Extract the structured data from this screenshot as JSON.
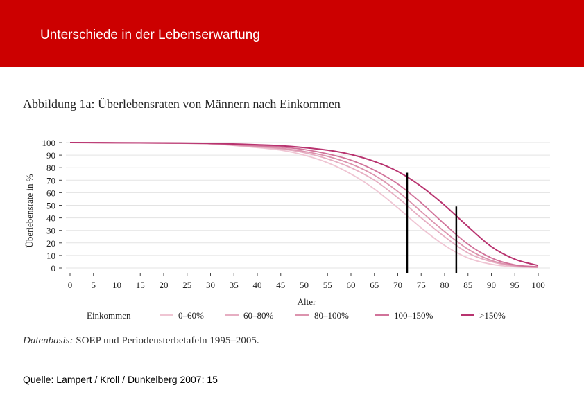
{
  "header": {
    "title": "Unterschiede in der Lebenserwartung"
  },
  "figure": {
    "title": "Abbildung 1a: Überlebensraten von Männern nach Einkommen",
    "datenbasis_label": "Datenbasis:",
    "datenbasis_text": " SOEP und Periodensterbetafeln 1995–2005."
  },
  "source": "Quelle: Lampert / Kroll / Dunkelberg 2007: 15",
  "colors": {
    "header_bg": "#cc0000",
    "grid": "#e3e3e3"
  },
  "chart_data": {
    "type": "line",
    "title": "Abbildung 1a: Überlebensraten von Männern nach Einkommen",
    "xlabel": "Alter",
    "ylabel": "Überlebensrate in %",
    "xlim": [
      0,
      100
    ],
    "ylim": [
      0,
      100
    ],
    "x_ticks": [
      0,
      5,
      10,
      15,
      20,
      25,
      30,
      35,
      40,
      45,
      50,
      55,
      60,
      65,
      70,
      75,
      80,
      85,
      90,
      95,
      100
    ],
    "y_ticks": [
      0,
      10,
      20,
      30,
      40,
      50,
      60,
      70,
      80,
      90,
      100
    ],
    "legend_title": "Einkommen",
    "x": [
      0,
      10,
      20,
      30,
      40,
      45,
      50,
      55,
      60,
      65,
      70,
      75,
      80,
      85,
      90,
      95,
      100
    ],
    "series": [
      {
        "name": "0–60%",
        "color": "#efc5d3",
        "values": [
          100,
          99.8,
          99.5,
          99,
          96,
          94,
          90,
          84,
          75,
          63,
          48,
          32,
          18,
          8,
          3,
          1,
          0.5
        ]
      },
      {
        "name": "60–80%",
        "color": "#e6aec2",
        "values": [
          100,
          99.8,
          99.5,
          99,
          96.5,
          95,
          92,
          87,
          80,
          70,
          56,
          40,
          25,
          12,
          5,
          1.5,
          0.5
        ]
      },
      {
        "name": "80–100%",
        "color": "#dc94ae",
        "values": [
          100,
          99.8,
          99.5,
          99,
          97,
          95.5,
          93,
          89,
          83,
          74,
          61,
          45,
          29,
          15,
          6,
          2,
          0.5
        ]
      },
      {
        "name": "100–150%",
        "color": "#d1739a",
        "values": [
          100,
          99.8,
          99.6,
          99.2,
          97.5,
          96.5,
          94.5,
          91,
          86,
          78,
          67,
          52,
          35,
          19,
          8,
          2.5,
          1
        ]
      },
      {
        "name": ">150%",
        "color": "#b8336f",
        "values": [
          100,
          99.9,
          99.7,
          99.4,
          98.3,
          97.5,
          96,
          94,
          90.5,
          85,
          77,
          65,
          50,
          33,
          17,
          7,
          2
        ]
      }
    ],
    "annotations": [
      {
        "type": "vertical-line",
        "x": 72,
        "y_top": 76,
        "label": ""
      },
      {
        "type": "vertical-line",
        "x": 82.5,
        "y_top": 49,
        "label": ""
      }
    ]
  }
}
